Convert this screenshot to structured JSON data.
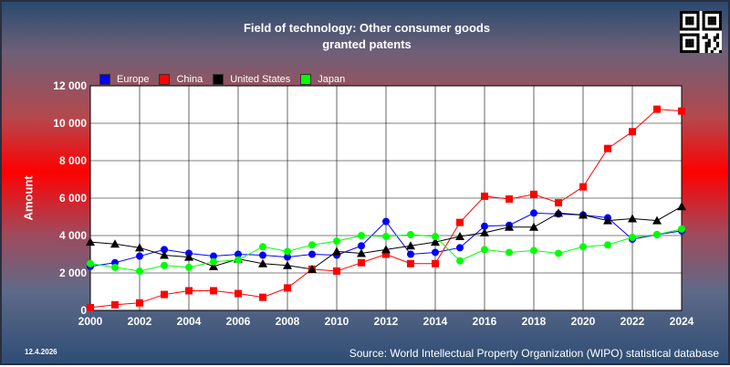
{
  "title_line1": "Field of technology: Other consumer goods",
  "title_line2": "granted patents",
  "ylabel": "Amount",
  "date": "12.4.2026",
  "source": "Source: World Intellectual Property Organization (WIPO) statistical database",
  "chart_data": {
    "type": "line",
    "title": "Field of technology: Other consumer goods granted patents",
    "xlabel": "",
    "ylabel": "Amount",
    "x": [
      2000,
      2001,
      2002,
      2003,
      2004,
      2005,
      2006,
      2007,
      2008,
      2009,
      2010,
      2011,
      2012,
      2013,
      2014,
      2015,
      2016,
      2017,
      2018,
      2019,
      2020,
      2021,
      2022,
      2023,
      2024
    ],
    "xticks": [
      "2000",
      "2002",
      "2004",
      "2006",
      "2008",
      "2010",
      "2012",
      "2014",
      "2016",
      "2018",
      "2020",
      "2022",
      "2024"
    ],
    "yticks": [
      0,
      2000,
      4000,
      6000,
      8000,
      10000,
      12000
    ],
    "ytick_labels": [
      "0",
      "2 000",
      "4 000",
      "6 000",
      "8 000",
      "10 000",
      "12 000"
    ],
    "xlim": [
      2000,
      2024
    ],
    "ylim": [
      0,
      12000
    ],
    "grid": true,
    "legend_position": "top-left",
    "series": [
      {
        "name": "Europe",
        "color": "#0000ff",
        "marker": "circle",
        "values": [
          2350,
          2550,
          2900,
          3250,
          3050,
          2900,
          3000,
          2950,
          2850,
          3000,
          2950,
          3450,
          4750,
          3000,
          3100,
          3350,
          4500,
          4550,
          5200,
          5150,
          5100,
          4950,
          3800,
          4050,
          4250
        ]
      },
      {
        "name": "China",
        "color": "#ff0000",
        "marker": "square",
        "values": [
          150,
          300,
          400,
          850,
          1050,
          1050,
          900,
          700,
          1200,
          2200,
          2100,
          2550,
          3000,
          2500,
          2500,
          4700,
          6100,
          5950,
          6200,
          5750,
          6600,
          8650,
          9550,
          10750,
          10650
        ]
      },
      {
        "name": "United States",
        "color": "#000000",
        "marker": "triangle",
        "values": [
          3650,
          3550,
          3350,
          2950,
          2850,
          2350,
          2750,
          2500,
          2400,
          2200,
          3150,
          3050,
          3250,
          3450,
          3650,
          3950,
          4150,
          4450,
          4450,
          5200,
          5100,
          4800,
          4900,
          4800,
          5550
        ]
      },
      {
        "name": "Japan",
        "color": "#00ff00",
        "marker": "circle",
        "values": [
          2500,
          2300,
          2100,
          2400,
          2300,
          2600,
          2700,
          3400,
          3150,
          3500,
          3700,
          4000,
          3950,
          4050,
          3950,
          2650,
          3250,
          3100,
          3200,
          3050,
          3400,
          3500,
          3900,
          4050,
          4350
        ]
      }
    ]
  }
}
